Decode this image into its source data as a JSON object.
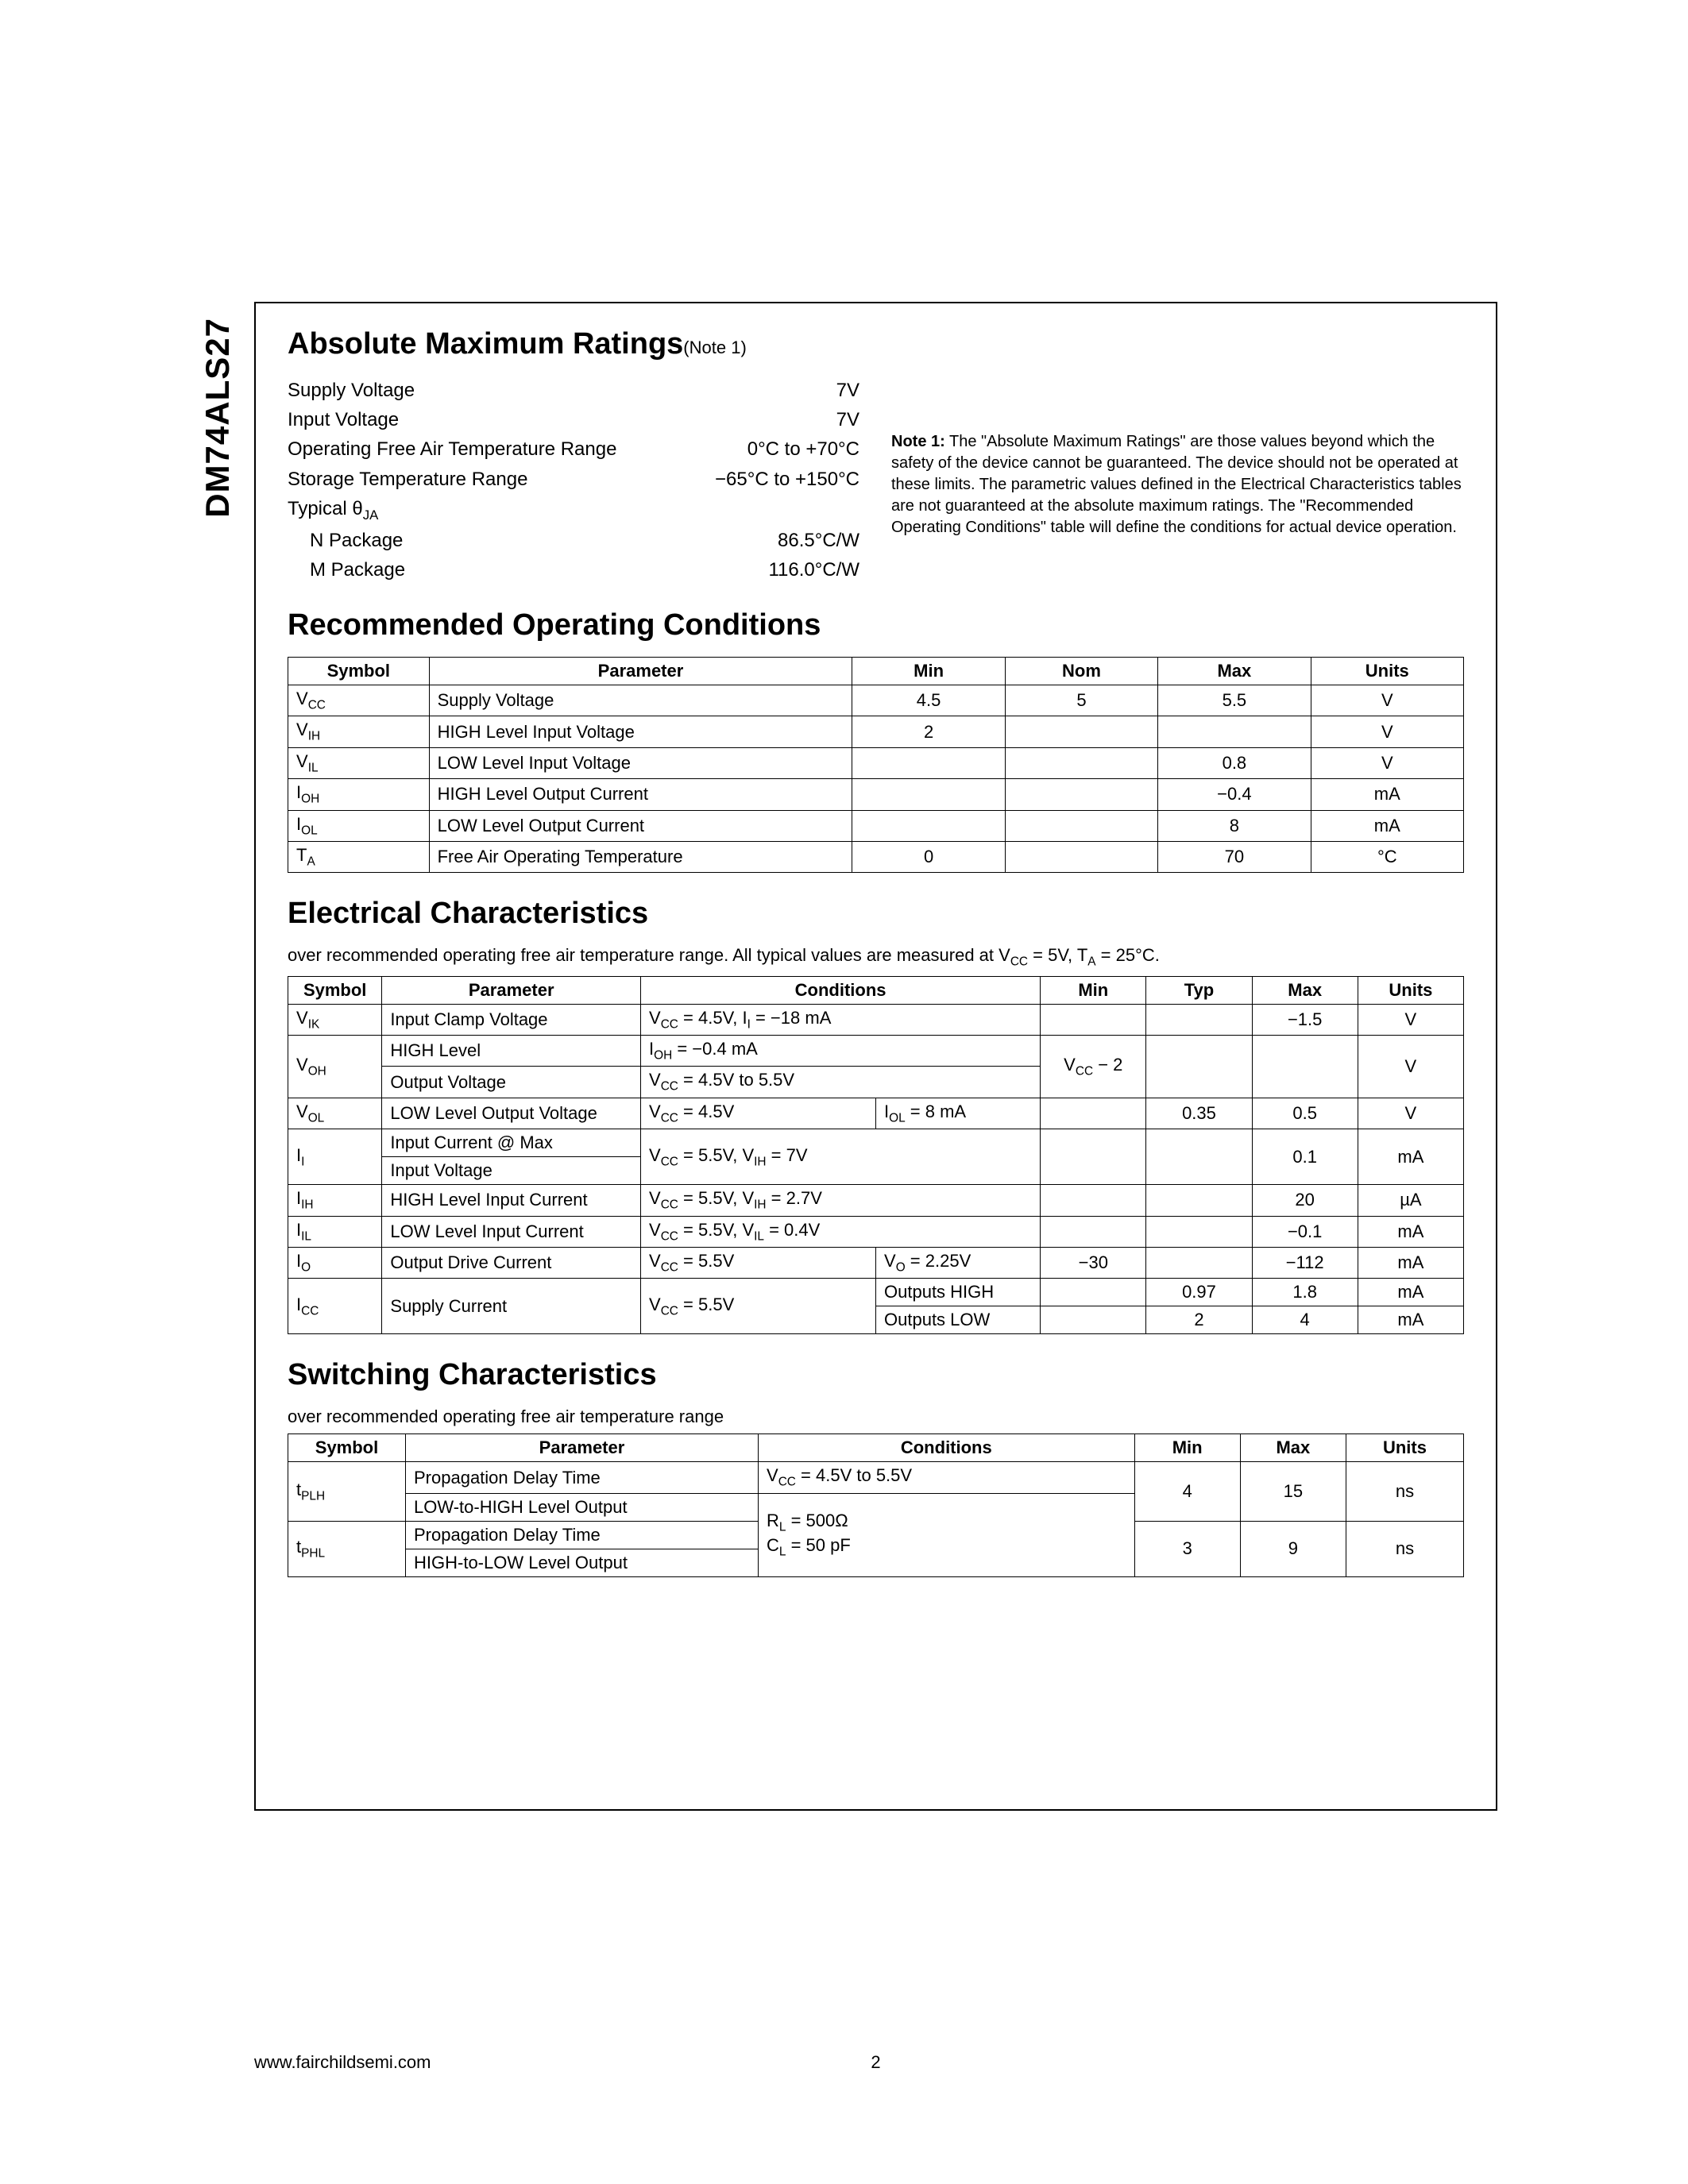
{
  "part_number": "DM74ALS27",
  "sections": {
    "abs_max": {
      "title": "Absolute Maximum Ratings",
      "note_ref": "(Note 1)",
      "rows": [
        {
          "label": "Supply Voltage",
          "value": "7V"
        },
        {
          "label": "Input Voltage",
          "value": "7V"
        },
        {
          "label": "Operating Free Air Temperature Range",
          "value": "0°C to +70°C"
        },
        {
          "label": "Storage Temperature Range",
          "value": "−65°C to +150°C"
        },
        {
          "label": "Typical θJA",
          "value": ""
        },
        {
          "label": "N Package",
          "value": "86.5°C/W",
          "indent": true
        },
        {
          "label": "M Package",
          "value": "116.0°C/W",
          "indent": true
        }
      ],
      "note_label": "Note 1:",
      "note_text": "The \"Absolute Maximum Ratings\" are those values beyond which the safety of the device cannot be guaranteed. The device should not be operated at these limits. The parametric values defined in the Electrical Characteristics tables are not guaranteed at the absolute maximum ratings. The \"Recommended Operating Conditions\" table will define the conditions for actual device operation."
    },
    "roc": {
      "title": "Recommended Operating Conditions",
      "headers": [
        "Symbol",
        "Parameter",
        "Min",
        "Nom",
        "Max",
        "Units"
      ],
      "rows": [
        {
          "sym": "V",
          "sub": "CC",
          "param": "Supply Voltage",
          "min": "4.5",
          "nom": "5",
          "max": "5.5",
          "units": "V"
        },
        {
          "sym": "V",
          "sub": "IH",
          "param": "HIGH Level Input Voltage",
          "min": "2",
          "nom": "",
          "max": "",
          "units": "V"
        },
        {
          "sym": "V",
          "sub": "IL",
          "param": "LOW Level Input Voltage",
          "min": "",
          "nom": "",
          "max": "0.8",
          "units": "V"
        },
        {
          "sym": "I",
          "sub": "OH",
          "param": "HIGH Level Output Current",
          "min": "",
          "nom": "",
          "max": "−0.4",
          "units": "mA"
        },
        {
          "sym": "I",
          "sub": "OL",
          "param": "LOW Level Output Current",
          "min": "",
          "nom": "",
          "max": "8",
          "units": "mA"
        },
        {
          "sym": "T",
          "sub": "A",
          "param": "Free Air Operating Temperature",
          "min": "0",
          "nom": "",
          "max": "70",
          "units": "°C"
        }
      ]
    },
    "elec": {
      "title": "Electrical Characteristics",
      "subtitle": "over recommended operating free air temperature range. All typical values are measured at VCC = 5V, TA = 25°C.",
      "headers": [
        "Symbol",
        "Parameter",
        "Conditions",
        "Min",
        "Typ",
        "Max",
        "Units"
      ]
    },
    "sw": {
      "title": "Switching Characteristics",
      "subtitle": "over recommended operating free air temperature range",
      "headers": [
        "Symbol",
        "Parameter",
        "Conditions",
        "Min",
        "Max",
        "Units"
      ]
    }
  },
  "elec_rows": {
    "vik": {
      "sym": "V",
      "sub": "IK",
      "param": "Input Clamp Voltage",
      "cond": "VCC = 4.5V, II = −18 mA",
      "min": "",
      "typ": "",
      "max": "−1.5",
      "units": "V"
    },
    "voh": {
      "sym": "V",
      "sub": "OH",
      "param1": "HIGH Level",
      "param2": "Output Voltage",
      "cond1": "IOH = −0.4 mA",
      "cond2": "VCC = 4.5V to 5.5V",
      "min": "VCC − 2",
      "typ": "",
      "max": "",
      "units": "V"
    },
    "vol": {
      "sym": "V",
      "sub": "OL",
      "param": "LOW Level Output Voltage",
      "cond1": "VCC = 4.5V",
      "cond2": "IOL = 8 mA",
      "min": "",
      "typ": "0.35",
      "max": "0.5",
      "units": "V"
    },
    "ii": {
      "sym": "I",
      "sub": "I",
      "param1": "Input Current @ Max",
      "param2": "Input Voltage",
      "cond": "VCC = 5.5V, VIH = 7V",
      "min": "",
      "typ": "",
      "max": "0.1",
      "units": "mA"
    },
    "iih": {
      "sym": "I",
      "sub": "IH",
      "param": "HIGH Level Input Current",
      "cond": "VCC = 5.5V, VIH = 2.7V",
      "min": "",
      "typ": "",
      "max": "20",
      "units": "µA"
    },
    "iil": {
      "sym": "I",
      "sub": "IL",
      "param": "LOW Level Input Current",
      "cond": "VCC = 5.5V, VIL = 0.4V",
      "min": "",
      "typ": "",
      "max": "−0.1",
      "units": "mA"
    },
    "io": {
      "sym": "I",
      "sub": "O",
      "param": "Output Drive Current",
      "cond1": "VCC = 5.5V",
      "cond2": "VO = 2.25V",
      "min": "−30",
      "typ": "",
      "max": "−112",
      "units": "mA"
    },
    "icc": {
      "sym": "I",
      "sub": "CC",
      "param": "Supply Current",
      "cond1": "VCC = 5.5V",
      "cond2a": "Outputs HIGH",
      "cond2b": "Outputs LOW",
      "typ_a": "0.97",
      "max_a": "1.8",
      "typ_b": "2",
      "max_b": "4",
      "units": "mA"
    }
  },
  "sw_rows": {
    "tplh": {
      "sym": "t",
      "sub": "PLH",
      "param1": "Propagation Delay Time",
      "param2": "LOW-to-HIGH Level Output",
      "min": "4",
      "max": "15",
      "units": "ns"
    },
    "tphl": {
      "sym": "t",
      "sub": "PHL",
      "param1": "Propagation Delay Time",
      "param2": "HIGH-to-LOW Level Output",
      "min": "3",
      "max": "9",
      "units": "ns"
    },
    "cond1": "VCC = 4.5V to 5.5V",
    "cond2": "RL = 500Ω",
    "cond3": "CL = 50 pF"
  },
  "footer": {
    "url": "www.fairchildsemi.com",
    "page": "2"
  }
}
